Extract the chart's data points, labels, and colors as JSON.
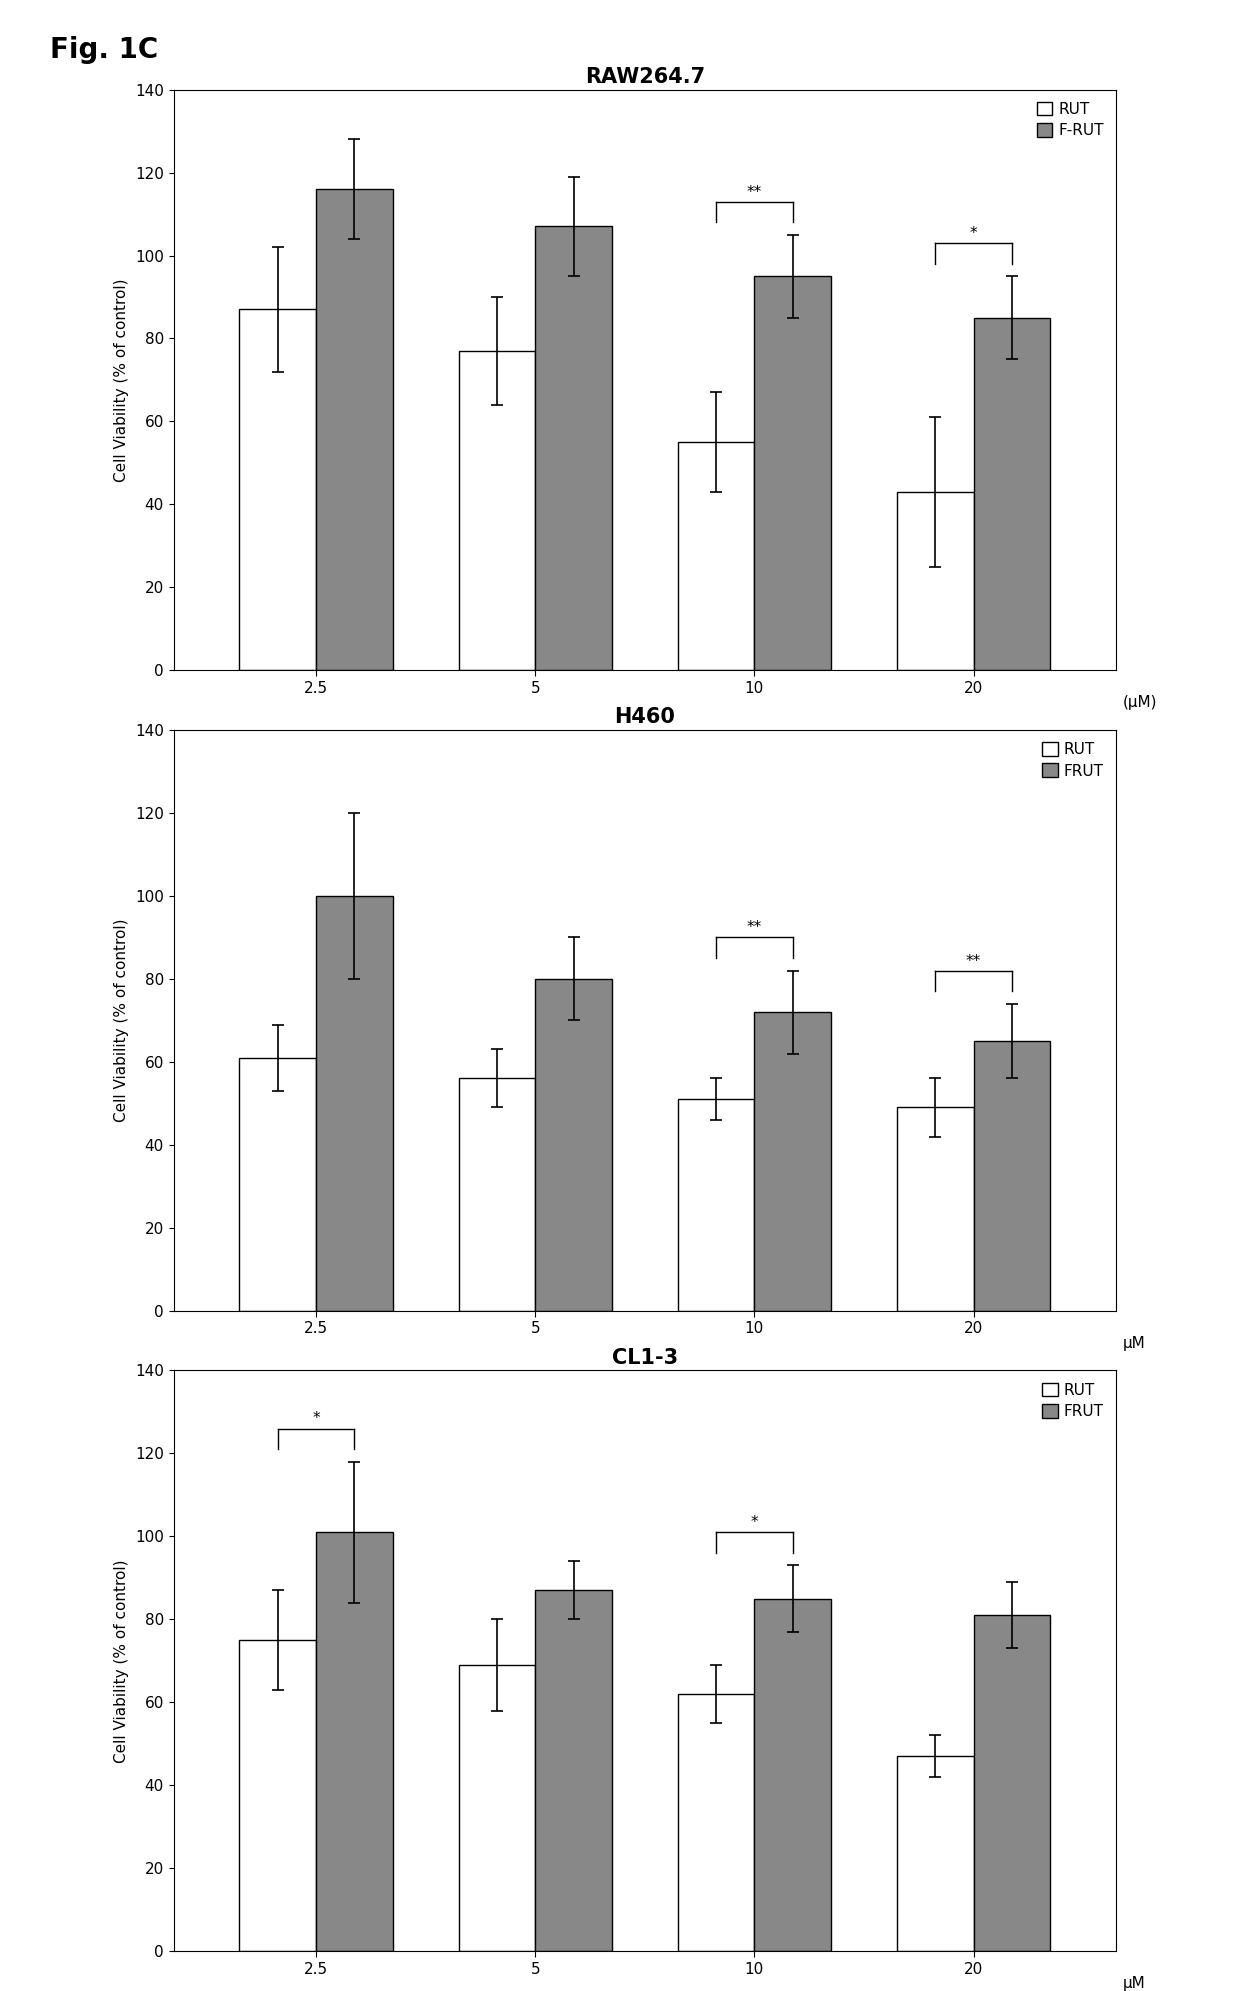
{
  "fig_label": "Fig. 1C",
  "charts": [
    {
      "title": "RAW264.7",
      "legend1": "RUT",
      "legend2": "F-RUT",
      "xlabel_unit": "(μM)",
      "ylabel": "Cell Viability (% of control)",
      "categories": [
        "2.5",
        "5",
        "10",
        "20"
      ],
      "rut_values": [
        87,
        77,
        55,
        43
      ],
      "frut_values": [
        116,
        107,
        95,
        85
      ],
      "rut_errors": [
        15,
        13,
        12,
        18
      ],
      "frut_errors": [
        12,
        12,
        10,
        10
      ],
      "significance": [
        null,
        null,
        "**",
        "*"
      ],
      "sig_on_frut": [
        false,
        false,
        true,
        true
      ],
      "ylim": [
        0,
        140
      ],
      "yticks": [
        0,
        20,
        40,
        60,
        80,
        100,
        120,
        140
      ]
    },
    {
      "title": "H460",
      "legend1": "RUT",
      "legend2": "FRUT",
      "xlabel_unit": "μM",
      "ylabel": "Cell Viability (% of control)",
      "categories": [
        "2.5",
        "5",
        "10",
        "20"
      ],
      "rut_values": [
        61,
        56,
        51,
        49
      ],
      "frut_values": [
        100,
        80,
        72,
        65
      ],
      "rut_errors": [
        8,
        7,
        5,
        7
      ],
      "frut_errors": [
        20,
        10,
        10,
        9
      ],
      "significance": [
        null,
        null,
        "**",
        "**"
      ],
      "sig_on_frut": [
        false,
        false,
        true,
        true
      ],
      "ylim": [
        0,
        140
      ],
      "yticks": [
        0,
        20,
        40,
        60,
        80,
        100,
        120,
        140
      ]
    },
    {
      "title": "CL1-3",
      "legend1": "RUT",
      "legend2": "FRUT",
      "xlabel_unit": "μM",
      "ylabel": "Cell Viability (% of control)",
      "categories": [
        "2.5",
        "5",
        "10",
        "20"
      ],
      "rut_values": [
        75,
        69,
        62,
        47
      ],
      "frut_values": [
        101,
        87,
        85,
        81
      ],
      "rut_errors": [
        12,
        11,
        7,
        5
      ],
      "frut_errors": [
        17,
        7,
        8,
        8
      ],
      "significance": [
        "*",
        null,
        "*",
        null
      ],
      "sig_on_frut": [
        true,
        false,
        true,
        false
      ],
      "ylim": [
        0,
        140
      ],
      "yticks": [
        0,
        20,
        40,
        60,
        80,
        100,
        120,
        140
      ]
    }
  ],
  "bar_width": 0.35,
  "rut_color": "white",
  "frut_color": "#888888",
  "edge_color": "black",
  "background_color": "white",
  "fig_label_fontsize": 20,
  "title_fontsize": 15,
  "ylabel_fontsize": 11,
  "tick_fontsize": 11,
  "legend_fontsize": 11
}
